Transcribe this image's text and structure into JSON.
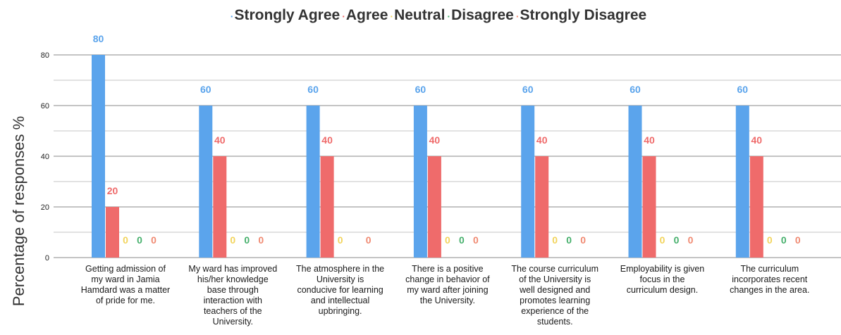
{
  "chart_data": {
    "type": "bar",
    "ylabel": "Percentage of responses %",
    "ylim": [
      0,
      80
    ],
    "yticks": [
      0,
      20,
      40,
      60,
      80
    ],
    "grid": true,
    "legend_position": "top",
    "categories": [
      "Getting admission of my ward in Jamia Hamdard was a matter of pride for me.",
      "My ward has improved his/her knowledge base through interaction with teachers of the University.",
      "The atmosphere in the University is conducive for learning and intellectual upbringing.",
      "There is a positive change in behavior of my ward after joining the University.",
      "The course curriculum of the University is well designed and promotes learning experience of the students.",
      "Employability is given focus in the curriculum design.",
      "The curriculum incorporates recent changes in the area."
    ],
    "category_lines": [
      [
        "Getting admission of",
        "my ward in Jamia",
        "Hamdard was a matter",
        "of pride for me."
      ],
      [
        "My ward has improved",
        "his/her knowledge",
        "base through",
        "interaction with",
        "teachers of the",
        "University."
      ],
      [
        "The atmosphere in the",
        "University is",
        "conducive for learning",
        "and intellectual",
        "upbringing."
      ],
      [
        "There is a positive",
        "change in behavior of",
        "my ward after joining",
        "the University."
      ],
      [
        "The course curriculum",
        "of the University is",
        "well designed and",
        "promotes learning",
        "experience of the",
        "students."
      ],
      [
        "Employability is given",
        "focus in the",
        "curriculum design."
      ],
      [
        "The curriculum",
        "incorporates recent",
        "changes in the area."
      ]
    ],
    "series": [
      {
        "name": "Strongly Agree",
        "color": "#5ba4ec",
        "values": [
          80,
          60,
          60,
          60,
          60,
          60,
          60
        ],
        "labels": [
          "80",
          "60",
          "60",
          "60",
          "60",
          "60",
          "60"
        ]
      },
      {
        "name": "Agree",
        "color": "#ef6b6b",
        "values": [
          20,
          40,
          40,
          40,
          40,
          40,
          40
        ],
        "labels": [
          "20",
          "40",
          "40",
          "40",
          "40",
          "40",
          "40"
        ]
      },
      {
        "name": "Neutral",
        "color": "#f2d45c",
        "values": [
          0,
          0,
          0,
          0,
          0,
          0,
          0
        ],
        "labels": [
          "0",
          "0",
          "0",
          "0",
          "0",
          "0",
          "0"
        ]
      },
      {
        "name": "Disagree",
        "color": "#46b06c",
        "values": [
          0,
          0,
          0,
          0,
          0,
          0,
          0
        ],
        "labels": [
          "0",
          "0",
          "",
          "0",
          "0",
          "0",
          "0"
        ]
      },
      {
        "name": "Strongly Disagree",
        "color": "#f08a72",
        "values": [
          0,
          0,
          0,
          0,
          0,
          0,
          0
        ],
        "labels": [
          "0",
          "0",
          "0",
          "0",
          "0",
          "0",
          "0"
        ]
      }
    ]
  }
}
